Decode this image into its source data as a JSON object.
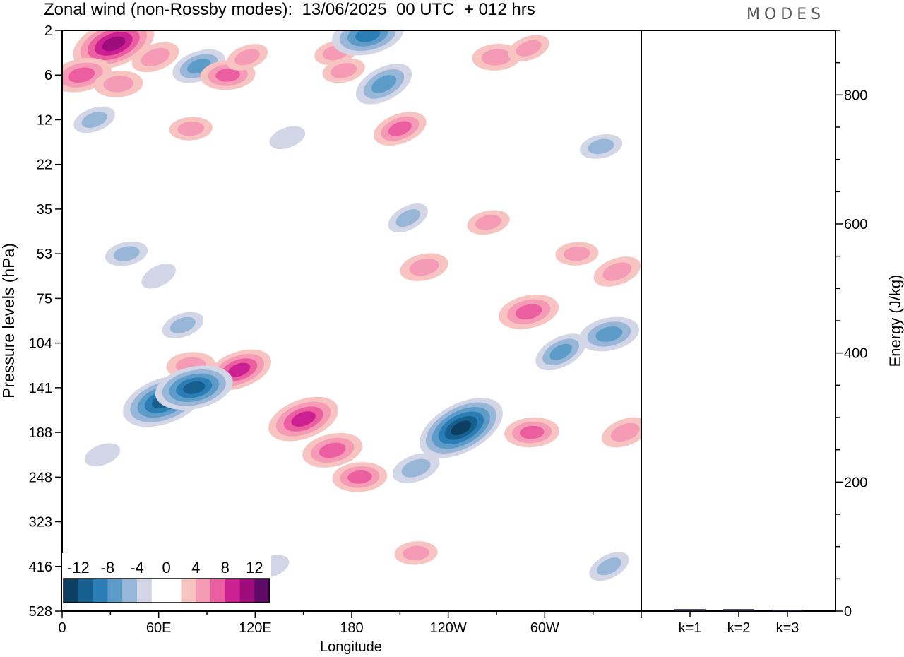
{
  "title": "Zonal wind (non-Rossby modes):  13/06/2025  00 UTC  + 012 hrs",
  "logo": "MODES",
  "chart_data": [
    {
      "type": "heatmap",
      "title": "Zonal wind (non-Rossby modes):  13/06/2025  00 UTC  + 012 hrs",
      "xlabel": "Longitude",
      "ylabel": "Pressure levels (hPa)",
      "x_ticks": [
        "0",
        "60E",
        "120E",
        "180",
        "120W",
        "60W"
      ],
      "x_tick_degrees": [
        0,
        60,
        120,
        180,
        240,
        300
      ],
      "xlim": [
        0,
        360
      ],
      "y_ticks": [
        "2",
        "6",
        "12",
        "22",
        "35",
        "53",
        "75",
        "104",
        "141",
        "188",
        "248",
        "323",
        "416",
        "528"
      ],
      "y_scale": "pressure levels (top to bottom)",
      "colorbar": {
        "labels": [
          "-12",
          "-8",
          "-4",
          "0",
          "4",
          "8",
          "12"
        ],
        "colors": [
          "#0c3f62",
          "#175f8f",
          "#2a7db5",
          "#5d9cc8",
          "#98b6d7",
          "#d3d6e6",
          "#ffffff",
          "#ffffff",
          "#f8c4c2",
          "#f59bb6",
          "#eb5fa0",
          "#cc2092",
          "#9c0c7a",
          "#5c0a66"
        ]
      },
      "features": [
        {
          "x": 32,
          "y_level": 0.3,
          "value": 10
        },
        {
          "x": 12,
          "y_level": 1.0,
          "value": 6
        },
        {
          "x": 35,
          "y_level": 1.2,
          "value": 4
        },
        {
          "x": 58,
          "y_level": 0.6,
          "value": 4
        },
        {
          "x": 85,
          "y_level": 0.8,
          "value": -5
        },
        {
          "x": 103,
          "y_level": 1.0,
          "value": 5
        },
        {
          "x": 115,
          "y_level": 0.6,
          "value": 3
        },
        {
          "x": 170,
          "y_level": 0.5,
          "value": 3
        },
        {
          "x": 190,
          "y_level": 0.1,
          "value": -8
        },
        {
          "x": 200,
          "y_level": 1.2,
          "value": -6
        },
        {
          "x": 175,
          "y_level": 0.9,
          "value": 3
        },
        {
          "x": 270,
          "y_level": 0.6,
          "value": 4
        },
        {
          "x": 290,
          "y_level": 0.4,
          "value": 3
        },
        {
          "x": 20,
          "y_level": 2.0,
          "value": -3
        },
        {
          "x": 80,
          "y_level": 2.2,
          "value": 3
        },
        {
          "x": 210,
          "y_level": 2.2,
          "value": 5
        },
        {
          "x": 140,
          "y_level": 2.4,
          "value": -2
        },
        {
          "x": 335,
          "y_level": 2.6,
          "value": -3
        },
        {
          "x": 215,
          "y_level": 4.2,
          "value": -3
        },
        {
          "x": 265,
          "y_level": 4.3,
          "value": 3
        },
        {
          "x": 40,
          "y_level": 5.0,
          "value": -3
        },
        {
          "x": 60,
          "y_level": 5.5,
          "value": -2
        },
        {
          "x": 225,
          "y_level": 5.3,
          "value": 4
        },
        {
          "x": 320,
          "y_level": 5.0,
          "value": 3
        },
        {
          "x": 345,
          "y_level": 5.4,
          "value": 4
        },
        {
          "x": 290,
          "y_level": 6.3,
          "value": 6
        },
        {
          "x": 340,
          "y_level": 6.8,
          "value": -6
        },
        {
          "x": 310,
          "y_level": 7.2,
          "value": -5
        },
        {
          "x": 75,
          "y_level": 6.6,
          "value": -3
        },
        {
          "x": 80,
          "y_level": 7.5,
          "value": 4
        },
        {
          "x": 110,
          "y_level": 7.6,
          "value": 7
        },
        {
          "x": 63,
          "y_level": 8.3,
          "value": -10
        },
        {
          "x": 82,
          "y_level": 8.0,
          "value": -9
        },
        {
          "x": 150,
          "y_level": 8.7,
          "value": 8
        },
        {
          "x": 168,
          "y_level": 9.4,
          "value": 6
        },
        {
          "x": 185,
          "y_level": 10.0,
          "value": 5
        },
        {
          "x": 248,
          "y_level": 8.9,
          "value": -11
        },
        {
          "x": 220,
          "y_level": 9.8,
          "value": -4
        },
        {
          "x": 292,
          "y_level": 9.0,
          "value": 5
        },
        {
          "x": 350,
          "y_level": 9.0,
          "value": 4
        },
        {
          "x": 25,
          "y_level": 9.5,
          "value": -2
        },
        {
          "x": 220,
          "y_level": 11.7,
          "value": 3
        },
        {
          "x": 340,
          "y_level": 12.0,
          "value": -3
        },
        {
          "x": 130,
          "y_level": 12.0,
          "value": -2
        }
      ]
    },
    {
      "type": "bar",
      "categories": [
        "k=1",
        "k=2",
        "k=3"
      ],
      "values": [
        3,
        3,
        2
      ],
      "ylabel": "Energy (J/kg)",
      "y_ticks": [
        "0",
        "200",
        "400",
        "600",
        "800"
      ],
      "ylim": [
        0,
        900
      ]
    }
  ]
}
